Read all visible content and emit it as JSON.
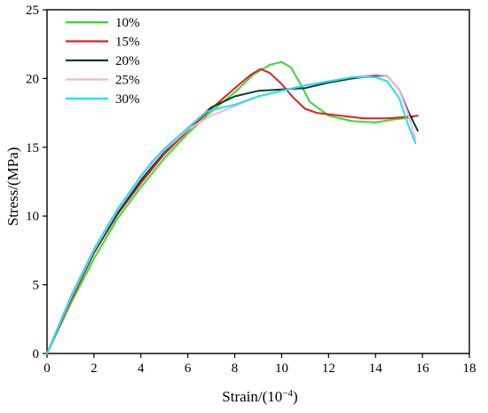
{
  "chart_data": {
    "type": "line",
    "xlabel": "Strain/(10",
    "xlabel_exponent": "−4",
    "xlabel_suffix": ")",
    "ylabel": "Stress/(MPa)",
    "xlim": [
      0,
      18
    ],
    "ylim": [
      0,
      25
    ],
    "xticks": [
      0,
      2,
      4,
      6,
      8,
      10,
      12,
      14,
      16,
      18
    ],
    "yticks": [
      0,
      5,
      10,
      15,
      20,
      25
    ],
    "grid": false,
    "legend_position": "top-left",
    "series": [
      {
        "name": "10%",
        "color": "#33dd33",
        "points": [
          [
            0,
            0
          ],
          [
            1,
            3.6
          ],
          [
            2,
            6.9
          ],
          [
            3,
            9.8
          ],
          [
            4,
            12.1
          ],
          [
            5,
            14.2
          ],
          [
            6,
            16.0
          ],
          [
            7,
            17.6
          ],
          [
            8,
            19.0
          ],
          [
            8.8,
            20.3
          ],
          [
            9.5,
            21.0
          ],
          [
            10,
            21.2
          ],
          [
            10.4,
            20.8
          ],
          [
            10.8,
            19.6
          ],
          [
            11.2,
            18.3
          ],
          [
            12,
            17.3
          ],
          [
            13,
            16.9
          ],
          [
            14,
            16.8
          ],
          [
            14.7,
            17.0
          ],
          [
            15.2,
            17.1
          ],
          [
            15.6,
            17.2
          ]
        ]
      },
      {
        "name": "15%",
        "color": "#e02020",
        "points": [
          [
            0,
            0
          ],
          [
            1,
            3.8
          ],
          [
            2,
            7.3
          ],
          [
            3,
            10.1
          ],
          [
            4,
            12.4
          ],
          [
            5,
            14.5
          ],
          [
            6,
            16.2
          ],
          [
            7,
            17.8
          ],
          [
            8,
            19.3
          ],
          [
            8.7,
            20.3
          ],
          [
            9.1,
            20.7
          ],
          [
            9.5,
            20.4
          ],
          [
            10,
            19.6
          ],
          [
            10.5,
            18.6
          ],
          [
            11,
            17.8
          ],
          [
            11.5,
            17.5
          ],
          [
            12.5,
            17.3
          ],
          [
            13.5,
            17.1
          ],
          [
            14.5,
            17.1
          ],
          [
            15.3,
            17.2
          ],
          [
            15.8,
            17.3
          ]
        ]
      },
      {
        "name": "20%",
        "color": "#0b3d2e",
        "points": [
          [
            0,
            0
          ],
          [
            1,
            4.0
          ],
          [
            2,
            7.4
          ],
          [
            3,
            10.2
          ],
          [
            4,
            12.6
          ],
          [
            5,
            14.7
          ],
          [
            6,
            16.4
          ],
          [
            7,
            17.9
          ],
          [
            8,
            18.7
          ],
          [
            9,
            19.1
          ],
          [
            10,
            19.2
          ],
          [
            11,
            19.3
          ],
          [
            12,
            19.7
          ],
          [
            13,
            20.0
          ],
          [
            14,
            20.2
          ],
          [
            14.5,
            20.2
          ],
          [
            15,
            19.2
          ],
          [
            15.4,
            17.6
          ],
          [
            15.8,
            16.2
          ]
        ]
      },
      {
        "name": "25%",
        "color": "#f4b4dc",
        "points": [
          [
            0,
            0
          ],
          [
            1,
            4.0
          ],
          [
            2,
            7.5
          ],
          [
            3,
            10.4
          ],
          [
            4,
            12.8
          ],
          [
            5,
            14.8
          ],
          [
            6,
            16.3
          ],
          [
            7,
            17.3
          ],
          [
            8,
            18.0
          ],
          [
            9,
            18.7
          ],
          [
            10,
            19.1
          ],
          [
            11,
            19.5
          ],
          [
            12,
            19.8
          ],
          [
            13,
            20.1
          ],
          [
            14,
            20.3
          ],
          [
            14.5,
            20.2
          ],
          [
            15,
            19.2
          ],
          [
            15.4,
            17.4
          ],
          [
            15.7,
            15.6
          ]
        ]
      },
      {
        "name": "30%",
        "color": "#22e0f0",
        "points": [
          [
            0,
            0
          ],
          [
            1,
            4.1
          ],
          [
            2,
            7.6
          ],
          [
            3,
            10.5
          ],
          [
            4,
            12.9
          ],
          [
            4.5,
            14.0
          ],
          [
            5,
            14.9
          ],
          [
            6,
            16.4
          ],
          [
            6.8,
            17.6
          ],
          [
            7.5,
            17.9
          ],
          [
            8,
            18.1
          ],
          [
            9,
            18.7
          ],
          [
            10,
            19.1
          ],
          [
            11,
            19.5
          ],
          [
            12,
            19.8
          ],
          [
            13,
            20.1
          ],
          [
            14,
            20.1
          ],
          [
            14.5,
            19.8
          ],
          [
            15,
            18.6
          ],
          [
            15.4,
            16.6
          ],
          [
            15.7,
            15.3
          ]
        ]
      }
    ]
  }
}
